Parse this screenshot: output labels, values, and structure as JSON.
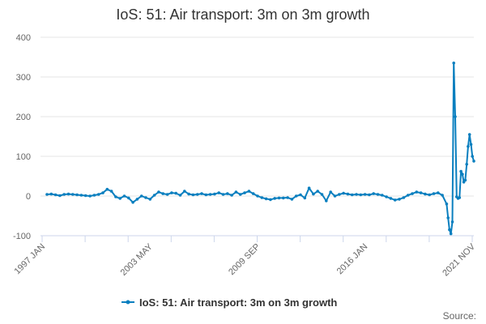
{
  "chart_data": {
    "type": "line",
    "title": "IoS: 51: Air transport: 3m on 3m growth",
    "xlabel": "",
    "ylabel": "",
    "ylim": [
      -100,
      400
    ],
    "y_ticks": [
      -100,
      0,
      100,
      200,
      300,
      400
    ],
    "x_tick_labels": [
      "1997 JAN",
      "2003 MAY",
      "2009 SEP",
      "2016 JAN",
      "2021 NOV"
    ],
    "grid": true,
    "legend_position": "bottom",
    "series": [
      {
        "name": "IoS: 51: Air transport: 3m on 3m growth",
        "color": "#0a7fbf",
        "points": [
          [
            "1997-01",
            4
          ],
          [
            "1997-04",
            5
          ],
          [
            "1997-07",
            3
          ],
          [
            "1997-10",
            1
          ],
          [
            "1998-01",
            4
          ],
          [
            "1998-04",
            5
          ],
          [
            "1998-07",
            4
          ],
          [
            "1998-10",
            3
          ],
          [
            "1999-01",
            2
          ],
          [
            "1999-04",
            1
          ],
          [
            "1999-07",
            0
          ],
          [
            "1999-10",
            2
          ],
          [
            "2000-01",
            4
          ],
          [
            "2000-04",
            8
          ],
          [
            "2000-07",
            17
          ],
          [
            "2000-10",
            12
          ],
          [
            "2001-01",
            -2
          ],
          [
            "2001-04",
            -6
          ],
          [
            "2001-07",
            0
          ],
          [
            "2001-10",
            -5
          ],
          [
            "2002-01",
            -16
          ],
          [
            "2002-04",
            -8
          ],
          [
            "2002-07",
            0
          ],
          [
            "2002-10",
            -4
          ],
          [
            "2003-01",
            -8
          ],
          [
            "2003-04",
            2
          ],
          [
            "2003-07",
            10
          ],
          [
            "2003-10",
            6
          ],
          [
            "2004-01",
            4
          ],
          [
            "2004-04",
            8
          ],
          [
            "2004-07",
            7
          ],
          [
            "2004-10",
            2
          ],
          [
            "2005-01",
            12
          ],
          [
            "2005-04",
            5
          ],
          [
            "2005-07",
            3
          ],
          [
            "2005-10",
            4
          ],
          [
            "2006-01",
            6
          ],
          [
            "2006-04",
            3
          ],
          [
            "2006-07",
            4
          ],
          [
            "2006-10",
            5
          ],
          [
            "2007-01",
            8
          ],
          [
            "2007-04",
            4
          ],
          [
            "2007-07",
            6
          ],
          [
            "2007-10",
            2
          ],
          [
            "2008-01",
            10
          ],
          [
            "2008-04",
            4
          ],
          [
            "2008-07",
            8
          ],
          [
            "2008-10",
            12
          ],
          [
            "2009-01",
            6
          ],
          [
            "2009-04",
            0
          ],
          [
            "2009-07",
            -4
          ],
          [
            "2009-10",
            -7
          ],
          [
            "2010-01",
            -9
          ],
          [
            "2010-04",
            -6
          ],
          [
            "2010-07",
            -5
          ],
          [
            "2010-10",
            -5
          ],
          [
            "2011-01",
            -4
          ],
          [
            "2011-04",
            -8
          ],
          [
            "2011-07",
            0
          ],
          [
            "2011-10",
            3
          ],
          [
            "2012-01",
            -5
          ],
          [
            "2012-04",
            20
          ],
          [
            "2012-07",
            5
          ],
          [
            "2012-10",
            12
          ],
          [
            "2013-01",
            4
          ],
          [
            "2013-04",
            -12
          ],
          [
            "2013-07",
            10
          ],
          [
            "2013-10",
            0
          ],
          [
            "2014-01",
            4
          ],
          [
            "2014-04",
            7
          ],
          [
            "2014-07",
            5
          ],
          [
            "2014-10",
            3
          ],
          [
            "2015-01",
            4
          ],
          [
            "2015-04",
            3
          ],
          [
            "2015-07",
            4
          ],
          [
            "2015-10",
            3
          ],
          [
            "2016-01",
            6
          ],
          [
            "2016-04",
            4
          ],
          [
            "2016-07",
            2
          ],
          [
            "2016-10",
            -2
          ],
          [
            "2017-01",
            -6
          ],
          [
            "2017-04",
            -10
          ],
          [
            "2017-07",
            -8
          ],
          [
            "2017-10",
            -4
          ],
          [
            "2018-01",
            2
          ],
          [
            "2018-04",
            6
          ],
          [
            "2018-07",
            10
          ],
          [
            "2018-10",
            8
          ],
          [
            "2019-01",
            5
          ],
          [
            "2019-04",
            3
          ],
          [
            "2019-07",
            6
          ],
          [
            "2019-10",
            8
          ],
          [
            "2020-01",
            2
          ],
          [
            "2020-04",
            -20
          ],
          [
            "2020-05",
            -55
          ],
          [
            "2020-06",
            -85
          ],
          [
            "2020-07",
            -95
          ],
          [
            "2020-08",
            -65
          ],
          [
            "2020-09",
            335
          ],
          [
            "2020-10",
            200
          ],
          [
            "2020-11",
            -2
          ],
          [
            "2020-12",
            -6
          ],
          [
            "2021-01",
            -4
          ],
          [
            "2021-02",
            62
          ],
          [
            "2021-03",
            55
          ],
          [
            "2021-04",
            35
          ],
          [
            "2021-05",
            40
          ],
          [
            "2021-06",
            80
          ],
          [
            "2021-07",
            125
          ],
          [
            "2021-08",
            155
          ],
          [
            "2021-09",
            130
          ],
          [
            "2021-10",
            100
          ],
          [
            "2021-11",
            88
          ]
        ]
      }
    ]
  },
  "footer": {
    "source_label": "Source:"
  }
}
